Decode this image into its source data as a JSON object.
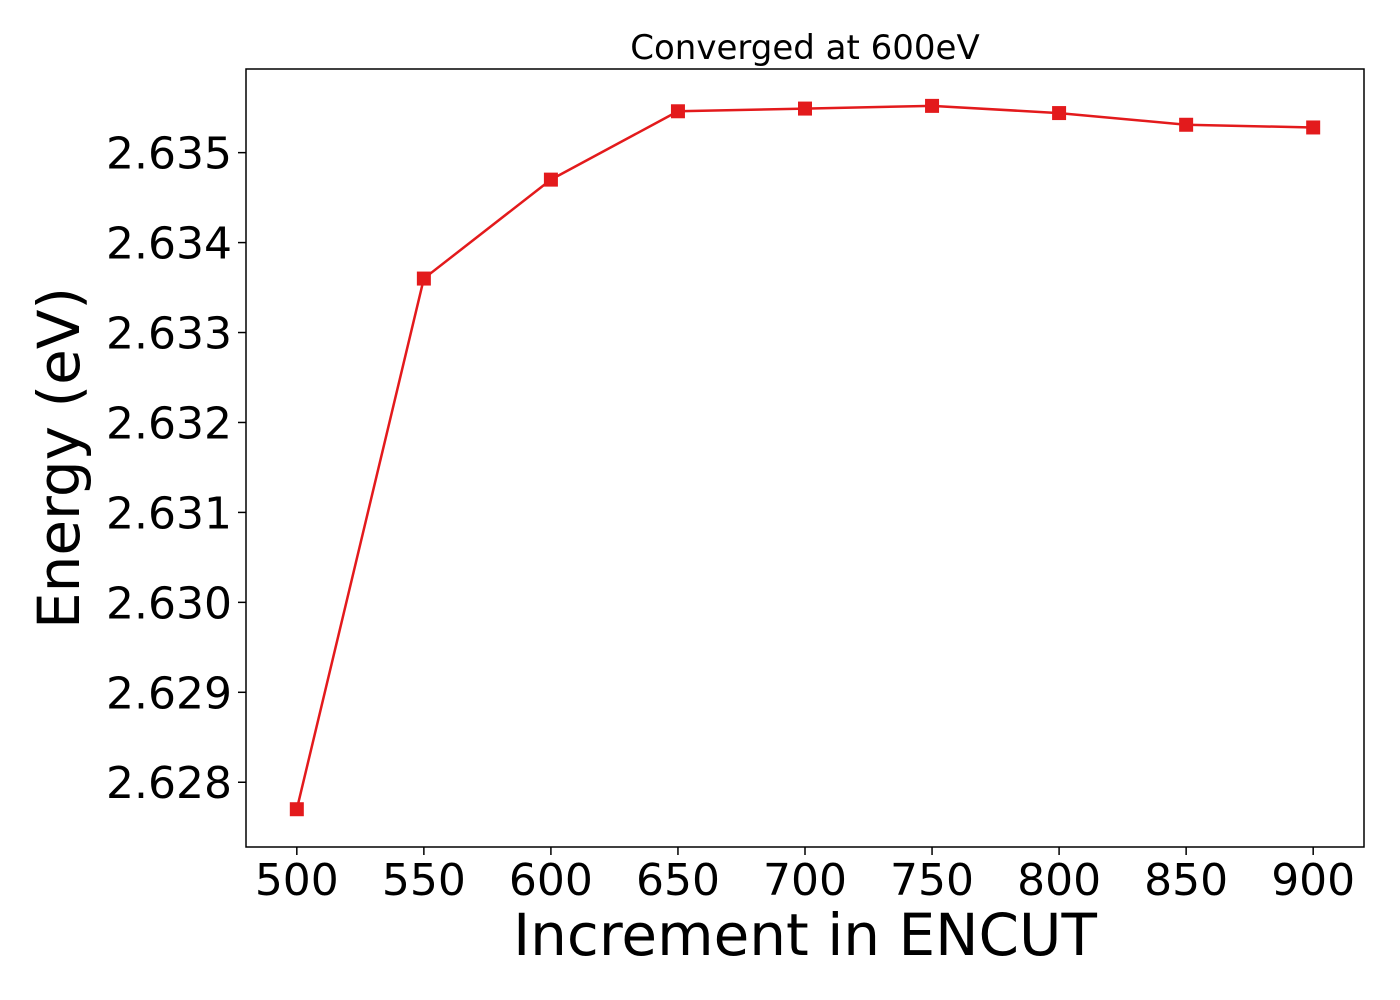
{
  "chart_data": {
    "type": "line",
    "title": "Converged at 600eV",
    "xlabel": "Increment in ENCUT",
    "ylabel": "Energy (eV)",
    "x": [
      500,
      550,
      600,
      650,
      700,
      750,
      800,
      850,
      900
    ],
    "series": [
      {
        "values": [
          2.6277,
          2.6336,
          2.6347,
          2.63546,
          2.63549,
          2.63552,
          2.63544,
          2.63531,
          2.63528
        ],
        "color": "#e31a1c",
        "marker": "square"
      }
    ],
    "xticks": [
      "500",
      "550",
      "600",
      "650",
      "700",
      "750",
      "800",
      "850",
      "900"
    ],
    "yticks": [
      "2.628",
      "2.629",
      "2.630",
      "2.631",
      "2.632",
      "2.633",
      "2.634",
      "2.635"
    ],
    "xlim": [
      480,
      920
    ],
    "ylim": [
      2.62728,
      2.63593
    ],
    "grid": false,
    "legend": "none"
  }
}
